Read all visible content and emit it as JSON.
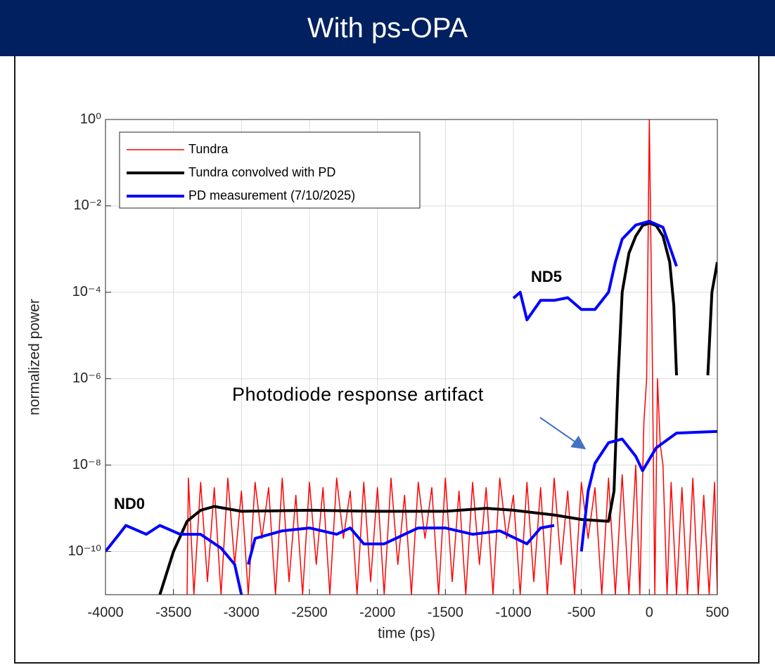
{
  "header": {
    "title": "With ps-OPA"
  },
  "chart_data": {
    "type": "line",
    "log_y": true,
    "grid": true,
    "legend_position": "upper left",
    "xlabel": "time (ps)",
    "ylabel": "normalized power",
    "xlim": [
      -4000,
      500
    ],
    "ylim": [
      1e-11,
      1
    ],
    "xticks": [
      -4000,
      -3500,
      -3000,
      -2500,
      -2000,
      -1500,
      -1000,
      -500,
      0,
      500
    ],
    "yticks": [
      {
        "value": 1e-10,
        "label": "10⁻¹⁰"
      },
      {
        "value": 1e-08,
        "label": "10⁻⁸"
      },
      {
        "value": 1e-06,
        "label": "10⁻⁶"
      },
      {
        "value": 0.0001,
        "label": "10⁻⁴"
      },
      {
        "value": 0.01,
        "label": "10⁻²"
      },
      {
        "value": 1,
        "label": "10⁰"
      }
    ],
    "annotations": [
      "ND5",
      "ND0",
      "Photodiode response artifact"
    ],
    "series": [
      {
        "name": "Tundra",
        "color": "#ff0000",
        "width": 1.5,
        "x": [
          -3400,
          -3390,
          -3350,
          -3300,
          -3250,
          -3200,
          -3150,
          -3100,
          -3050,
          -3000,
          -2950,
          -2900,
          -2850,
          -2800,
          -2750,
          -2700,
          -2650,
          -2600,
          -2550,
          -2500,
          -2450,
          -2400,
          -2350,
          -2300,
          -2250,
          -2200,
          -2150,
          -2100,
          -2050,
          -2000,
          -1950,
          -1900,
          -1850,
          -1800,
          -1750,
          -1700,
          -1650,
          -1600,
          -1550,
          -1500,
          -1450,
          -1400,
          -1350,
          -1300,
          -1250,
          -1200,
          -1150,
          -1100,
          -1050,
          -1000,
          -950,
          -900,
          -850,
          -800,
          -750,
          -700,
          -650,
          -600,
          -550,
          -500,
          -450,
          -400,
          -350,
          -300,
          -250,
          -200,
          -150,
          -100,
          -70,
          -40,
          -20,
          0,
          20,
          40,
          60,
          80,
          100,
          130,
          160,
          200,
          240,
          280,
          320,
          360,
          400,
          440,
          480,
          500
        ],
        "values": [
          1e-11,
          5e-09,
          1e-11,
          4e-09,
          2e-11,
          3e-09,
          1e-11,
          5e-09,
          5e-11,
          2.5e-09,
          1e-11,
          4e-09,
          2e-10,
          3e-09,
          1e-11,
          5e-09,
          2e-11,
          2e-09,
          1e-11,
          4e-09,
          5e-11,
          3e-09,
          1e-11,
          5e-09,
          2e-10,
          2.5e-09,
          1e-11,
          4e-09,
          2e-11,
          3e-09,
          1e-11,
          5e-09,
          5e-11,
          2e-09,
          1e-11,
          4e-09,
          2e-10,
          3e-09,
          1e-11,
          5e-09,
          2e-11,
          2.5e-09,
          1e-11,
          4e-09,
          5e-11,
          3e-09,
          1e-11,
          5e-09,
          2e-10,
          2e-09,
          1e-11,
          4e-09,
          2e-11,
          3e-09,
          1e-11,
          5e-09,
          5e-11,
          2.5e-09,
          1e-11,
          4e-09,
          2e-10,
          3e-09,
          1e-11,
          5e-09,
          1e-11,
          6e-09,
          1e-11,
          1e-08,
          1e-11,
          1e-07,
          1e-06,
          1,
          1e-05,
          1e-11,
          1e-06,
          3e-08,
          1e-08,
          1e-11,
          4e-09,
          1e-11,
          3e-09,
          1e-11,
          5e-09,
          1e-11,
          2e-09,
          1e-11,
          4e-09,
          1e-11
        ]
      },
      {
        "name": "Tundra convolved with PD",
        "color": "#000000",
        "width": 4,
        "x": [
          -3600,
          -3500,
          -3400,
          -3300,
          -3200,
          -3000,
          -2500,
          -2000,
          -1500,
          -1200,
          -1000,
          -700,
          -500,
          -300,
          -260,
          -230,
          -200,
          -150,
          -100,
          -50,
          0,
          50,
          100,
          150,
          180,
          200,
          300,
          430,
          460,
          500
        ],
        "values": [
          1e-11,
          1e-10,
          5e-10,
          9e-10,
          1.1e-09,
          8.5e-10,
          9e-10,
          8.5e-10,
          8.5e-10,
          1e-09,
          9e-10,
          7e-10,
          5.5e-10,
          5e-10,
          2.5e-09,
          1e-06,
          0.0001,
          0.0008,
          0.002,
          0.0035,
          0.004,
          0.0035,
          0.002,
          0.0005,
          5e-05,
          1.2e-06,
          null,
          1.2e-06,
          0.0001,
          0.0005
        ]
      },
      {
        "name": "PD measurement (7/10/2025)",
        "color": "#0000ff",
        "width": 4,
        "x": [
          -4000,
          -3900,
          -3850,
          -3700,
          -3600,
          -3450,
          -3300,
          -3150,
          -3050,
          -3000,
          -2980,
          -2950,
          -2900,
          -2700,
          -2500,
          -2300,
          -2200,
          -2100,
          -1950,
          -1800,
          -1700,
          -1500,
          -1300,
          -1100,
          -900,
          -800,
          -700,
          -600,
          -1000,
          -950,
          -900,
          -800,
          -700,
          -600,
          -500,
          -400,
          -300,
          -250,
          -200,
          -100,
          0,
          100,
          200,
          300,
          -500,
          -450,
          -400,
          -300,
          -200,
          -100,
          -50,
          50,
          200,
          500
        ],
        "values": [
          1e-10,
          2.5e-10,
          4e-10,
          2.5e-10,
          4e-10,
          2.5e-10,
          2.5e-10,
          1.2e-10,
          5e-11,
          1e-11,
          null,
          5e-11,
          2e-10,
          3e-10,
          3.5e-10,
          2.5e-10,
          3.5e-10,
          1.5e-10,
          1.5e-10,
          2.5e-10,
          3.5e-10,
          3.5e-10,
          2.5e-10,
          3e-10,
          1.5e-10,
          3.5e-10,
          4e-10,
          null,
          7.3e-05,
          0.0001,
          2.3e-05,
          6.5e-05,
          6.5e-05,
          7.5e-05,
          4e-05,
          4e-05,
          0.0001,
          0.0005,
          0.0017,
          0.0036,
          0.0044,
          0.0032,
          0.0004,
          null,
          1e-10,
          2.5e-09,
          1.1e-08,
          3.3e-08,
          4e-08,
          1.6e-08,
          7.4e-09,
          2.5e-08,
          5.5e-08,
          6e-08
        ]
      }
    ]
  }
}
